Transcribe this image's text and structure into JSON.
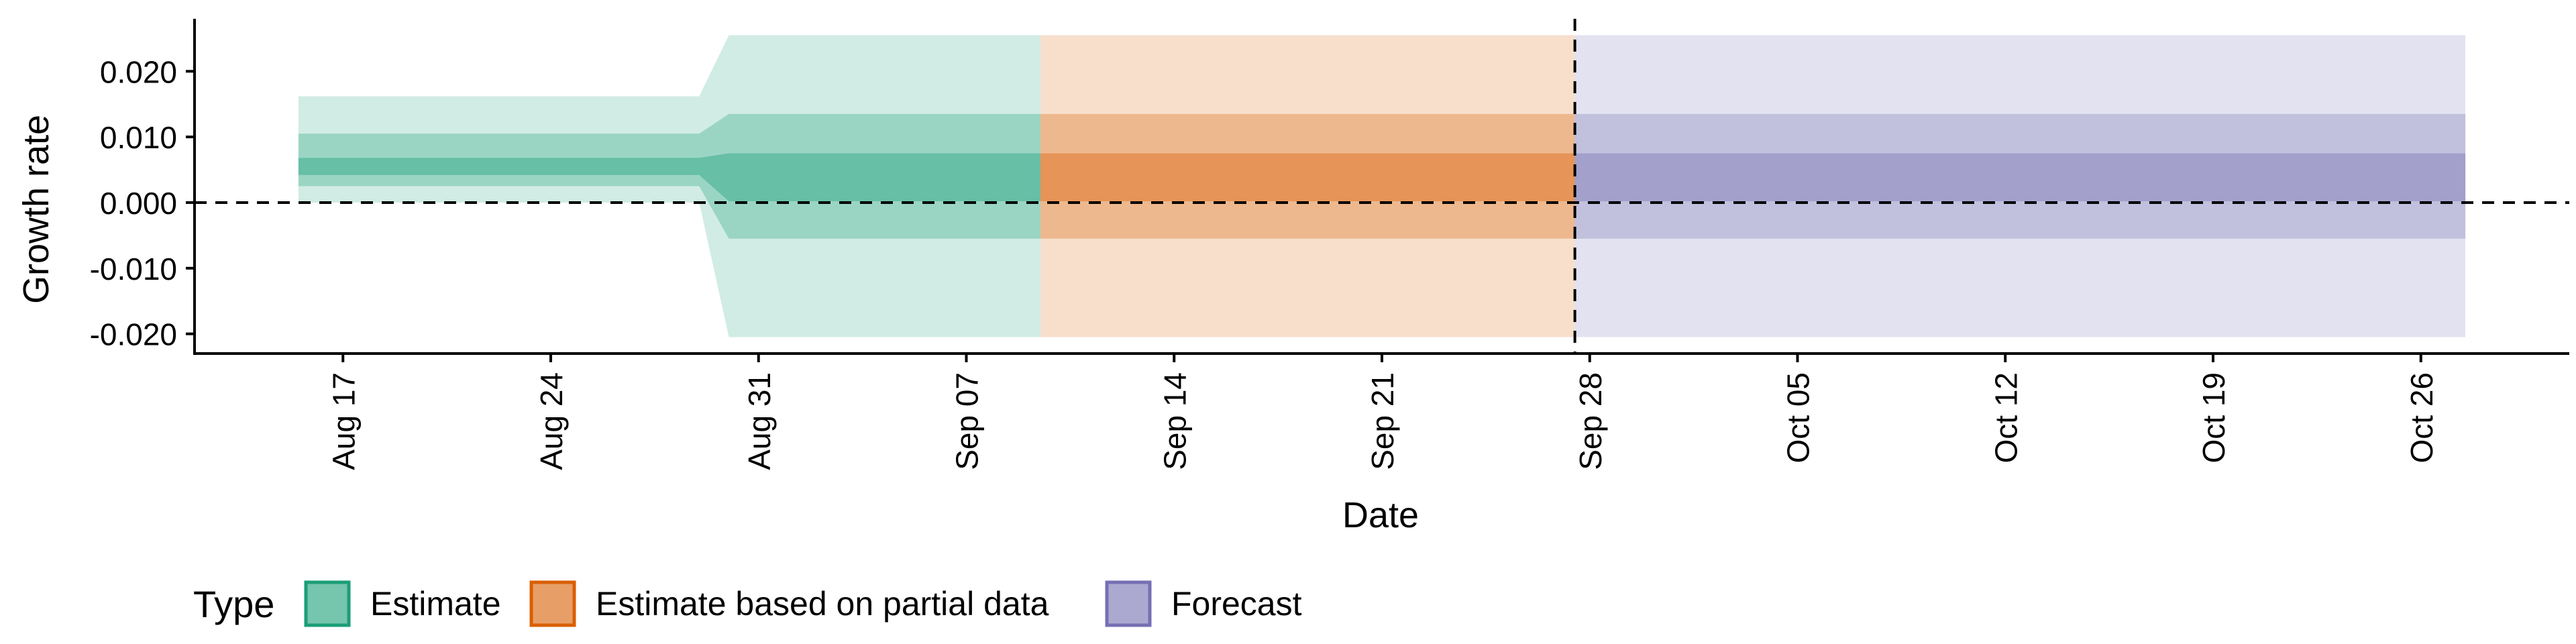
{
  "chart_data": {
    "type": "area",
    "xlabel": "Date",
    "ylabel": "Growth rate",
    "x_ticks": [
      "2020-08-17",
      "2020-08-24",
      "2020-08-31",
      "2020-09-07",
      "2020-09-14",
      "2020-09-21",
      "2020-09-28",
      "2020-10-05",
      "2020-10-12",
      "2020-10-19",
      "2020-10-26"
    ],
    "x_tick_labels": [
      "Aug 17",
      "Aug 24",
      "Aug 31",
      "Sep 07",
      "Sep 14",
      "Sep 21",
      "Sep 28",
      "Oct 05",
      "Oct 12",
      "Oct 19",
      "Oct 26"
    ],
    "xlim": [
      "2020-08-12",
      "2020-10-31"
    ],
    "y_ticks": [
      -0.02,
      -0.01,
      0.0,
      0.01,
      0.02
    ],
    "y_tick_labels": [
      "-0.020",
      "-0.010",
      "0.000",
      "0.010",
      "0.020"
    ],
    "ylim": [
      -0.023,
      0.028
    ],
    "hline_y": 0,
    "vline_x": "2020-09-27",
    "grid": false,
    "legend": {
      "title": "Type",
      "position": "bottom-left",
      "entries": [
        {
          "label": "Estimate",
          "color": "#1b9e77"
        },
        {
          "label": "Estimate based on partial data",
          "color": "#d95f02"
        },
        {
          "label": "Forecast",
          "color": "#7570b3"
        }
      ]
    },
    "series": [
      {
        "name": "Estimate",
        "color": "#1b9e77",
        "x": [
          "2020-08-16",
          "2020-08-29",
          "2020-08-30",
          "2020-09-09"
        ],
        "bands": [
          {
            "lower": [
              0.0,
              0.0,
              -0.0205,
              -0.0205
            ],
            "upper": [
              0.0162,
              0.0162,
              0.0255,
              0.0255
            ]
          },
          {
            "lower": [
              0.0025,
              0.0025,
              -0.0055,
              -0.0055
            ],
            "upper": [
              0.0105,
              0.0105,
              0.0135,
              0.0135
            ]
          },
          {
            "lower": [
              0.0042,
              0.0042,
              0.0002,
              0.0002
            ],
            "upper": [
              0.0068,
              0.0068,
              0.0075,
              0.0075
            ]
          }
        ]
      },
      {
        "name": "Estimate based on partial data",
        "color": "#d95f02",
        "x": [
          "2020-09-10",
          "2020-09-27"
        ],
        "bands": [
          {
            "lower": [
              -0.0205,
              -0.0205
            ],
            "upper": [
              0.0255,
              0.0255
            ]
          },
          {
            "lower": [
              -0.0055,
              -0.0055
            ],
            "upper": [
              0.0135,
              0.0135
            ]
          },
          {
            "lower": [
              0.0002,
              0.0002
            ],
            "upper": [
              0.0075,
              0.0075
            ]
          }
        ]
      },
      {
        "name": "Forecast",
        "color": "#7570b3",
        "x": [
          "2020-09-28",
          "2020-10-27"
        ],
        "bands": [
          {
            "lower": [
              -0.0205,
              -0.0205
            ],
            "upper": [
              0.0255,
              0.0255
            ]
          },
          {
            "lower": [
              -0.0055,
              -0.0055
            ],
            "upper": [
              0.0135,
              0.0135
            ]
          },
          {
            "lower": [
              0.0002,
              0.0002
            ],
            "upper": [
              0.0075,
              0.0075
            ]
          }
        ]
      }
    ]
  }
}
